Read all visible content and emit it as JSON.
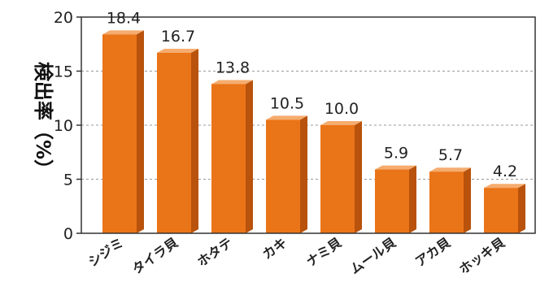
{
  "chart_data": {
    "type": "bar",
    "ylabel": "検出率（%）",
    "categories": [
      "シジミ",
      "タイラ貝",
      "ホタテ",
      "カキ",
      "ナミ貝",
      "ムール貝",
      "アカ貝",
      "ホッキ貝"
    ],
    "values": [
      18.4,
      16.7,
      13.8,
      10.5,
      10.0,
      5.9,
      5.7,
      4.2
    ],
    "value_labels": [
      "18.4",
      "16.7",
      "13.8",
      "10.5",
      "10.0",
      "5.9",
      "5.7",
      "4.2"
    ],
    "yticks": [
      0,
      5,
      10,
      15,
      20
    ],
    "ytick_labels": [
      "0",
      "5",
      "10",
      "15",
      "20"
    ],
    "ylim": [
      0,
      20
    ],
    "grid": true,
    "colors": {
      "bar_front": "#ea7418",
      "bar_side": "#b8520c",
      "bar_top": "#f5ac6e",
      "grid": "#999999",
      "frame": "#333333"
    }
  }
}
